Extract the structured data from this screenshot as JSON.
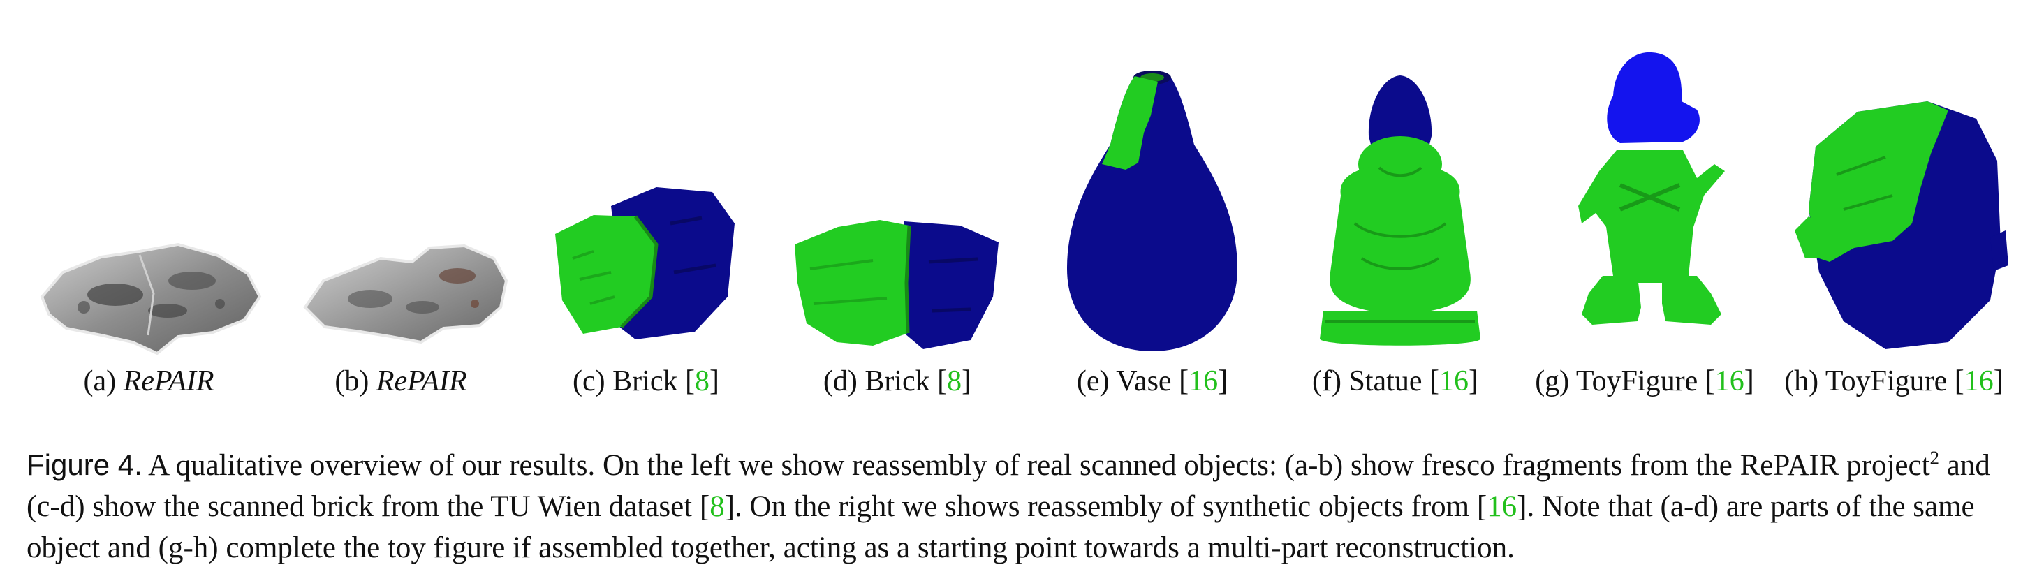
{
  "figure": {
    "panels": [
      {
        "id": "a",
        "prefix": "(a) ",
        "name": "RePAIR",
        "italic": true,
        "open": "",
        "cite": "",
        "close": ""
      },
      {
        "id": "b",
        "prefix": "(b) ",
        "name": "RePAIR",
        "italic": true,
        "open": "",
        "cite": "",
        "close": ""
      },
      {
        "id": "c",
        "prefix": "(c) ",
        "name": "Brick ",
        "italic": false,
        "open": "[",
        "cite": "8",
        "close": "]"
      },
      {
        "id": "d",
        "prefix": "(d) ",
        "name": "Brick ",
        "italic": false,
        "open": "[",
        "cite": "8",
        "close": "]"
      },
      {
        "id": "e",
        "prefix": "(e) ",
        "name": "Vase ",
        "italic": false,
        "open": "[",
        "cite": "16",
        "close": "]"
      },
      {
        "id": "f",
        "prefix": "(f) ",
        "name": "Statue ",
        "italic": false,
        "open": "[",
        "cite": "16",
        "close": "]"
      },
      {
        "id": "g",
        "prefix": "(g) ",
        "name": "ToyFigure ",
        "italic": false,
        "open": "[",
        "cite": "16",
        "close": "]"
      },
      {
        "id": "h",
        "prefix": "(h) ",
        "name": "ToyFigure ",
        "italic": false,
        "open": "[",
        "cite": "16",
        "close": "]"
      }
    ],
    "colors": {
      "part_green": "#22cc22",
      "part_blue": "#0b0b8c",
      "part_bright_blue": "#1414ee",
      "fresco_gray": "#9a9a9a",
      "citation_green": "#22c01c"
    }
  },
  "caption": {
    "label": "Figure 4.",
    "t1": "A qualitative overview of our results. On the left we show reassembly of real scanned objects: (a-b) show fresco fragments from the RePAIR project",
    "sup": "2",
    "t2": " and (c-d) show the scanned brick from the TU Wien dataset [",
    "cite1": "8",
    "t3": "]. On the right we shows reassembly of synthetic objects from [",
    "cite2": "16",
    "t4": "]. Note that (a-d) are parts of the same object and (g-h) complete the toy figure if assembled together, acting as a starting point towards a multi-part reconstruction."
  }
}
